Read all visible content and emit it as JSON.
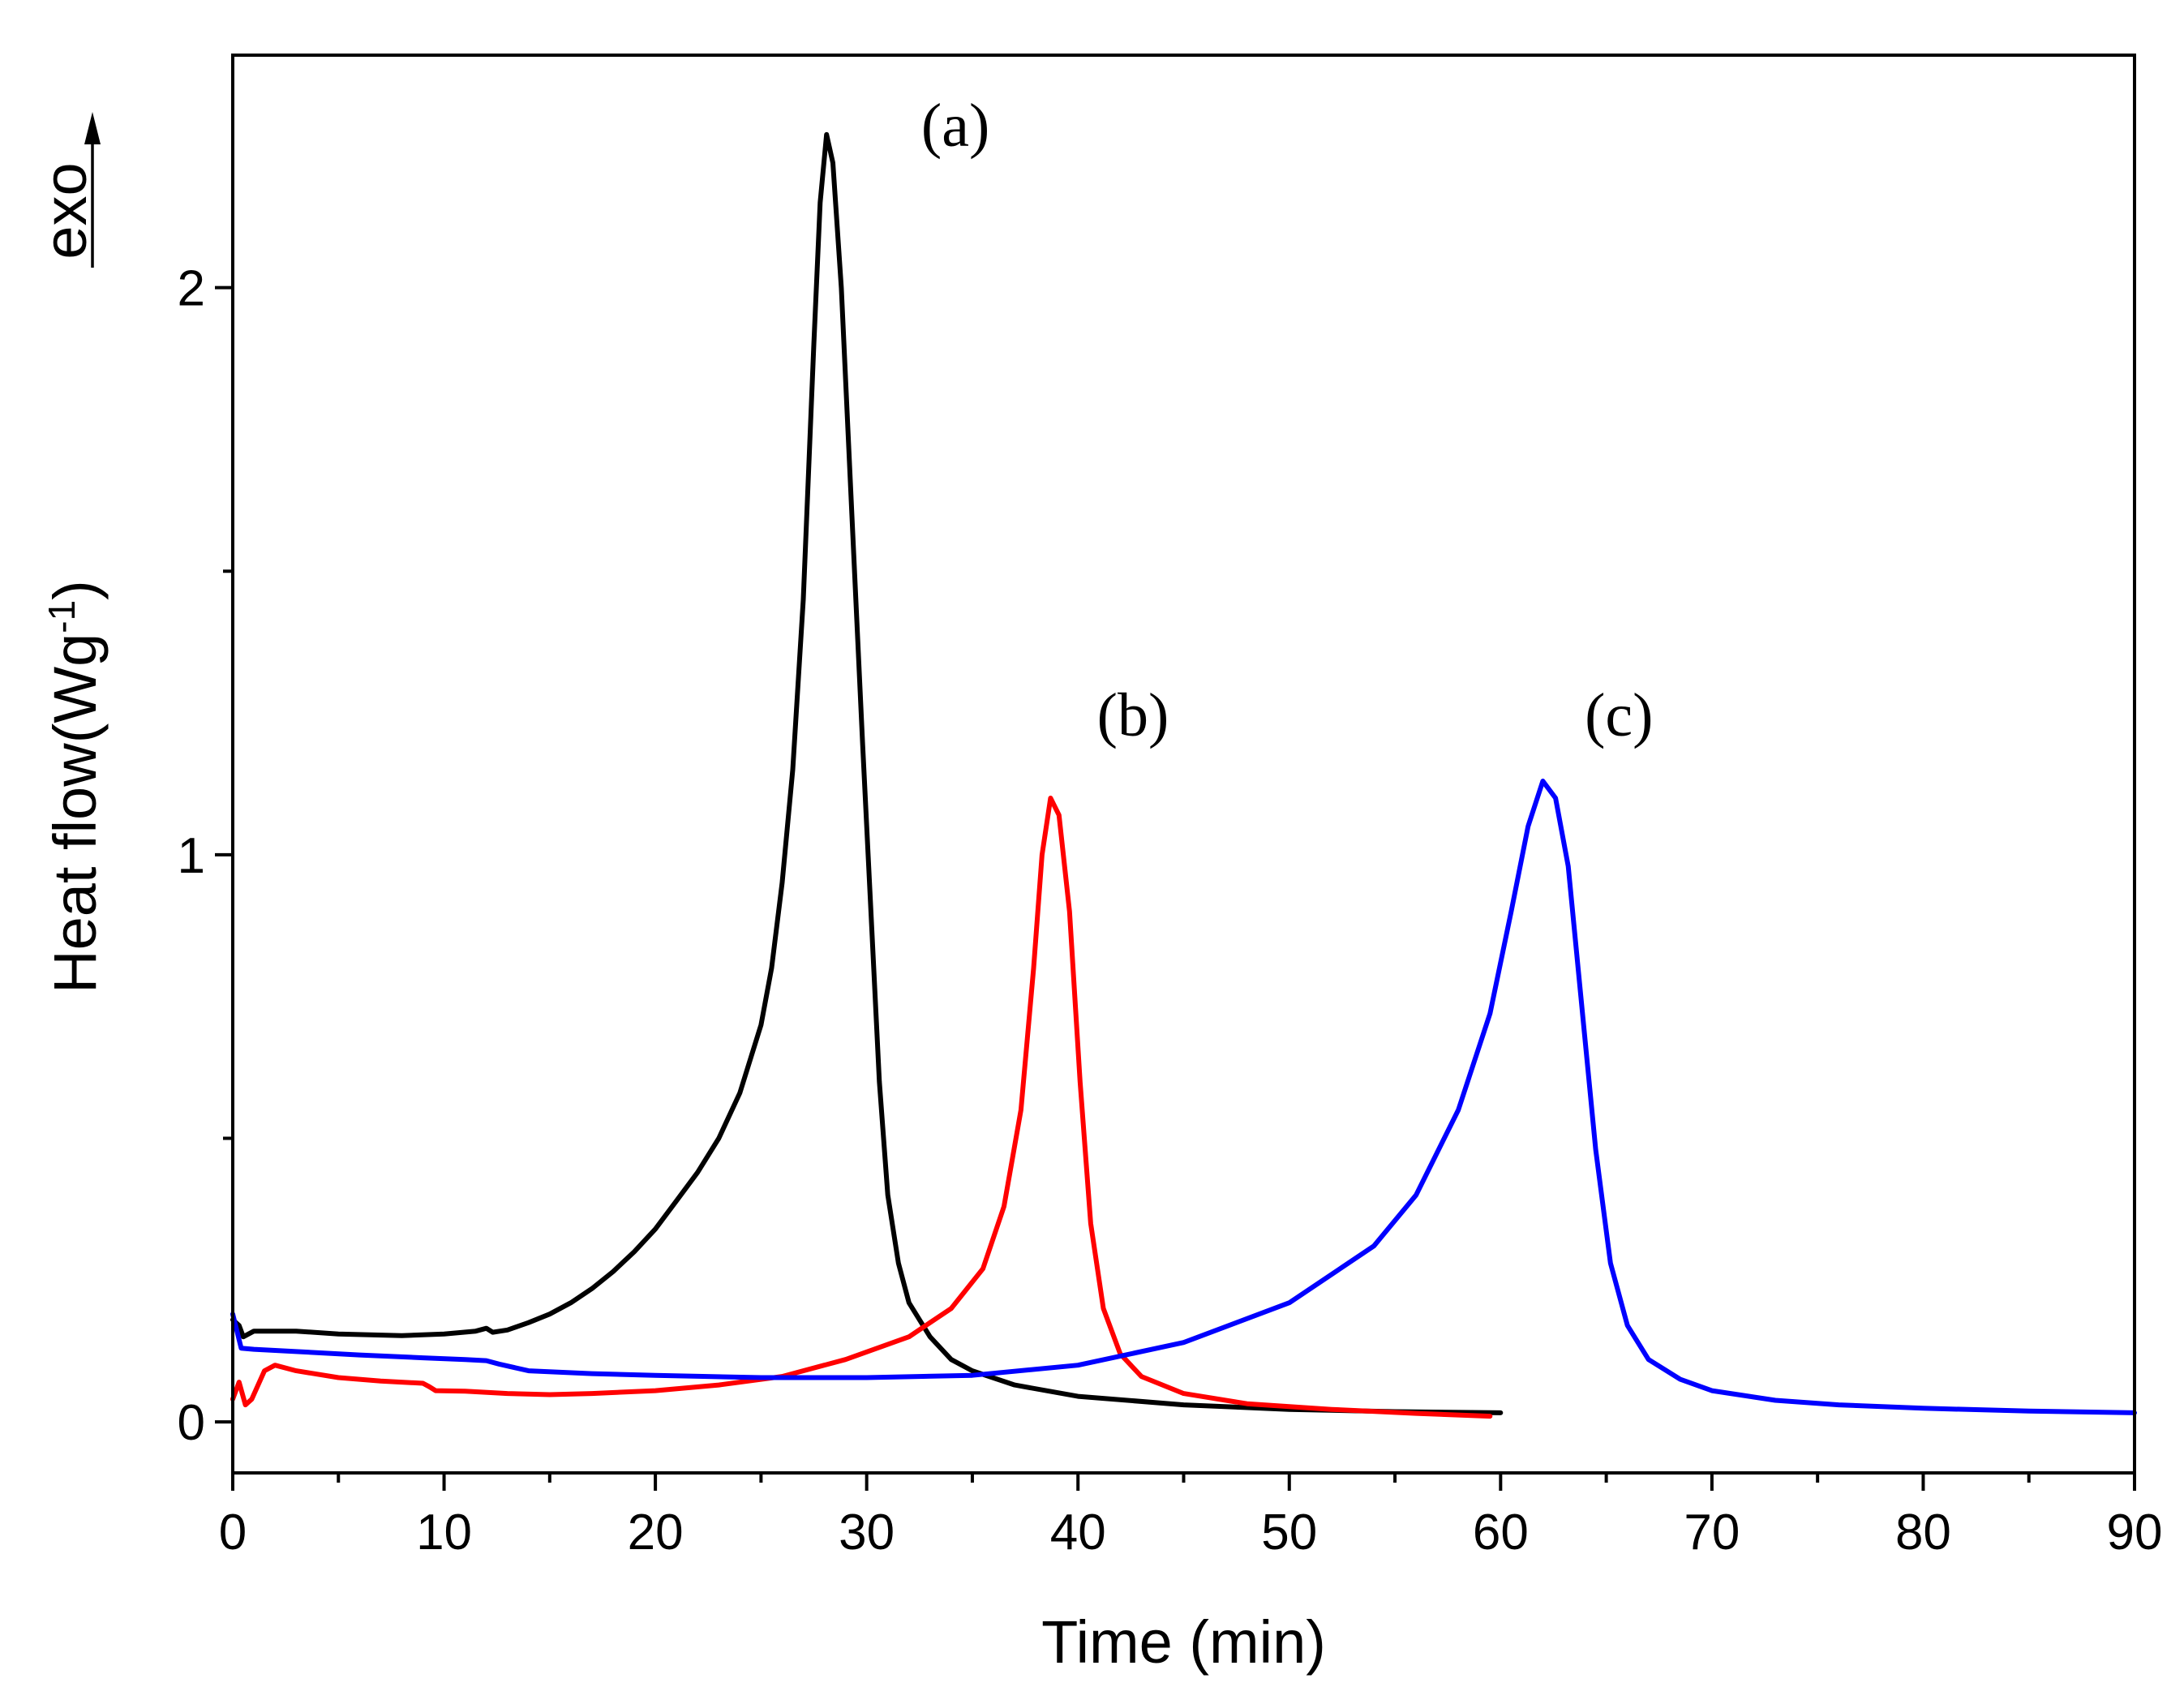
{
  "chart_data": {
    "type": "line",
    "title": "",
    "xlabel": "Time (min)",
    "ylabel": "Heat flow(Wg",
    "ylabel_superscript": "-1",
    "ylabel_close": ")",
    "exo_label": "exo",
    "xlim": [
      0,
      90
    ],
    "ylim": [
      -0.09,
      2.41
    ],
    "x_ticks": [
      {
        "value": 0,
        "label": "0"
      },
      {
        "value": 10,
        "label": "10"
      },
      {
        "value": 20,
        "label": "20"
      },
      {
        "value": 30,
        "label": "30"
      },
      {
        "value": 40,
        "label": "40"
      },
      {
        "value": 50,
        "label": "50"
      },
      {
        "value": 60,
        "label": "60"
      },
      {
        "value": 70,
        "label": "70"
      },
      {
        "value": 80,
        "label": "80"
      },
      {
        "value": 90,
        "label": "90"
      }
    ],
    "x_minor_step": 5,
    "y_ticks": [
      {
        "value": 0,
        "label": "0"
      },
      {
        "value": 1,
        "label": "1"
      },
      {
        "value": 2,
        "label": "2"
      }
    ],
    "y_minor_step": 0.5,
    "grid": false,
    "series": [
      {
        "name": "(a)",
        "color": "#000000",
        "label_at": [
          34.2,
          2.25
        ],
        "points": [
          [
            0,
            0.18
          ],
          [
            0.3,
            0.17
          ],
          [
            0.5,
            0.15
          ],
          [
            1,
            0.16
          ],
          [
            3,
            0.16
          ],
          [
            5,
            0.155
          ],
          [
            8,
            0.152
          ],
          [
            10,
            0.155
          ],
          [
            11.5,
            0.16
          ],
          [
            12,
            0.165
          ],
          [
            12.3,
            0.158
          ],
          [
            13,
            0.162
          ],
          [
            14,
            0.175
          ],
          [
            15,
            0.19
          ],
          [
            16,
            0.21
          ],
          [
            17,
            0.235
          ],
          [
            18,
            0.265
          ],
          [
            19,
            0.3
          ],
          [
            20,
            0.34
          ],
          [
            21,
            0.39
          ],
          [
            22,
            0.44
          ],
          [
            23,
            0.5
          ],
          [
            24,
            0.58
          ],
          [
            25,
            0.7
          ],
          [
            25.5,
            0.8
          ],
          [
            26,
            0.95
          ],
          [
            26.5,
            1.15
          ],
          [
            27,
            1.45
          ],
          [
            27.5,
            1.9
          ],
          [
            27.8,
            2.15
          ],
          [
            28.1,
            2.27
          ],
          [
            28.4,
            2.22
          ],
          [
            28.8,
            2.0
          ],
          [
            29.3,
            1.6
          ],
          [
            29.8,
            1.2
          ],
          [
            30.2,
            0.9
          ],
          [
            30.6,
            0.6
          ],
          [
            31,
            0.4
          ],
          [
            31.5,
            0.28
          ],
          [
            32,
            0.21
          ],
          [
            33,
            0.15
          ],
          [
            34,
            0.11
          ],
          [
            35,
            0.09
          ],
          [
            37,
            0.065
          ],
          [
            40,
            0.045
          ],
          [
            45,
            0.03
          ],
          [
            50,
            0.022
          ],
          [
            55,
            0.018
          ],
          [
            60,
            0.016
          ]
        ]
      },
      {
        "name": "(b)",
        "color": "#ff0000",
        "label_at": [
          42.6,
          1.21
        ],
        "points": [
          [
            0,
            0.04
          ],
          [
            0.3,
            0.07
          ],
          [
            0.6,
            0.03
          ],
          [
            0.9,
            0.04
          ],
          [
            1.5,
            0.09
          ],
          [
            2,
            0.1
          ],
          [
            3,
            0.09
          ],
          [
            5,
            0.078
          ],
          [
            7,
            0.072
          ],
          [
            9,
            0.068
          ],
          [
            9.3,
            0.062
          ],
          [
            9.6,
            0.055
          ],
          [
            11,
            0.054
          ],
          [
            13,
            0.05
          ],
          [
            15,
            0.048
          ],
          [
            17,
            0.05
          ],
          [
            20,
            0.055
          ],
          [
            23,
            0.065
          ],
          [
            26,
            0.08
          ],
          [
            29,
            0.11
          ],
          [
            32,
            0.15
          ],
          [
            34,
            0.2
          ],
          [
            35.5,
            0.27
          ],
          [
            36.5,
            0.38
          ],
          [
            37.3,
            0.55
          ],
          [
            37.9,
            0.8
          ],
          [
            38.3,
            1.0
          ],
          [
            38.7,
            1.1
          ],
          [
            39.1,
            1.07
          ],
          [
            39.6,
            0.9
          ],
          [
            40.1,
            0.6
          ],
          [
            40.6,
            0.35
          ],
          [
            41.2,
            0.2
          ],
          [
            42,
            0.12
          ],
          [
            43,
            0.08
          ],
          [
            45,
            0.05
          ],
          [
            48,
            0.032
          ],
          [
            52,
            0.022
          ],
          [
            56,
            0.015
          ],
          [
            59.5,
            0.01
          ]
        ]
      },
      {
        "name": "(c)",
        "color": "#0000ff",
        "label_at": [
          65.6,
          1.21
        ],
        "points": [
          [
            0,
            0.19
          ],
          [
            0.2,
            0.16
          ],
          [
            0.4,
            0.13
          ],
          [
            1,
            0.128
          ],
          [
            3,
            0.124
          ],
          [
            6,
            0.118
          ],
          [
            9,
            0.113
          ],
          [
            11,
            0.11
          ],
          [
            12,
            0.108
          ],
          [
            12.6,
            0.102
          ],
          [
            14,
            0.09
          ],
          [
            17,
            0.085
          ],
          [
            20,
            0.082
          ],
          [
            25,
            0.078
          ],
          [
            30,
            0.078
          ],
          [
            35,
            0.082
          ],
          [
            40,
            0.1
          ],
          [
            45,
            0.14
          ],
          [
            50,
            0.21
          ],
          [
            54,
            0.31
          ],
          [
            56,
            0.4
          ],
          [
            58,
            0.55
          ],
          [
            59.5,
            0.72
          ],
          [
            60.5,
            0.9
          ],
          [
            61.3,
            1.05
          ],
          [
            62,
            1.13
          ],
          [
            62.6,
            1.1
          ],
          [
            63.2,
            0.98
          ],
          [
            63.8,
            0.75
          ],
          [
            64.5,
            0.48
          ],
          [
            65.2,
            0.28
          ],
          [
            66,
            0.17
          ],
          [
            67,
            0.11
          ],
          [
            68.5,
            0.075
          ],
          [
            70,
            0.055
          ],
          [
            73,
            0.038
          ],
          [
            76,
            0.03
          ],
          [
            80,
            0.024
          ],
          [
            85,
            0.019
          ],
          [
            90,
            0.016
          ]
        ]
      }
    ]
  }
}
